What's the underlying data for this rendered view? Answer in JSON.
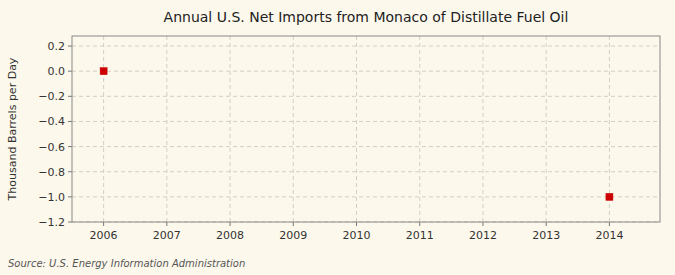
{
  "chart_data": {
    "type": "scatter",
    "title": "Annual U.S. Net Imports from Monaco of Distillate Fuel Oil",
    "ylabel": "Thousand Barrels per Day",
    "annotations": [
      "Source: U.S. Energy Information Administration"
    ],
    "x": [
      2006,
      2014
    ],
    "values": [
      0.0,
      -1.0
    ],
    "color": "#cc0000",
    "marker": "square",
    "xlim": [
      2005.5,
      2014.8
    ],
    "ylim": [
      -1.2,
      0.28
    ],
    "xticks": [
      2006,
      2007,
      2008,
      2009,
      2010,
      2011,
      2012,
      2013,
      2014
    ],
    "yticks": [
      0.2,
      {
        "value": 0.0,
        "label": "0.0"
      },
      {
        "value": -0.2,
        "label": "−0.2"
      },
      {
        "value": -0.4,
        "label": "−0.4"
      },
      {
        "value": -0.6,
        "label": "−0.6"
      },
      {
        "value": -0.8,
        "label": "−0.8"
      },
      {
        "value": -1.0,
        "label": "−1.0"
      },
      {
        "value": -1.2,
        "label": "−1.2"
      }
    ],
    "grid": true
  }
}
